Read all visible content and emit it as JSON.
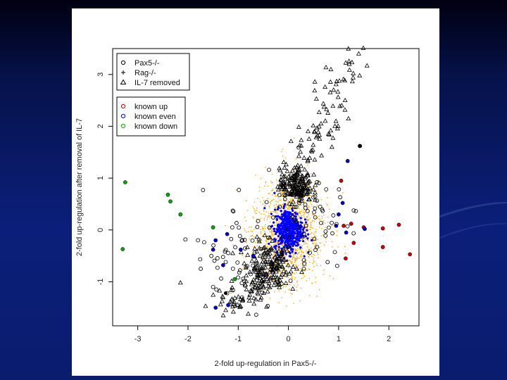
{
  "chart_data": {
    "type": "scatter",
    "title": "",
    "xlabel": "2-fold up-regulation in Pax5-/-",
    "ylabel": "2-fold up-regulation after removal of IL-7",
    "xlim": [
      -3.5,
      2.6
    ],
    "ylim": [
      -1.85,
      3.5
    ],
    "x_ticks": [
      "-3",
      "-2",
      "-1",
      "0",
      "1",
      "2"
    ],
    "y_ticks": [
      "-1",
      "0",
      "1",
      "2",
      "3"
    ],
    "legend_shapes": [
      {
        "symbol": "o",
        "label": "Pax5-/-"
      },
      {
        "symbol": "+",
        "label": "Rag-/-"
      },
      {
        "symbol": "triangle",
        "label": "IL-7 removed"
      }
    ],
    "legend_colors": [
      {
        "label": "known up",
        "color": "#d00000"
      },
      {
        "label": "known even",
        "color": "#0000d0"
      },
      {
        "label": "known down",
        "color": "#00b000"
      }
    ],
    "series": [
      {
        "name": "known up",
        "color": "#cc0000",
        "points": [
          [
            1.05,
            0.95
          ],
          [
            1.25,
            0.12
          ],
          [
            1.5,
            0.05
          ],
          [
            1.88,
            0.03
          ],
          [
            2.2,
            0.1
          ],
          [
            2.42,
            -0.47
          ],
          [
            1.88,
            -0.33
          ],
          [
            1.3,
            -0.25
          ],
          [
            1.14,
            -0.55
          ],
          [
            1.1,
            0.08
          ]
        ]
      },
      {
        "name": "known even",
        "color": "#0000cc",
        "points": [
          [
            1.15,
            -0.05
          ],
          [
            1.08,
            0.52
          ],
          [
            1.52,
            0.02
          ],
          [
            1.0,
            0.3
          ],
          [
            0.95,
            0.08
          ],
          [
            -1.22,
            -0.08
          ],
          [
            -1.5,
            -0.38
          ],
          [
            -1.3,
            -0.68
          ],
          [
            -1.45,
            -0.2
          ],
          [
            -0.7,
            -0.5
          ],
          [
            -1.2,
            -1.45
          ],
          [
            -1.45,
            -1.5
          ],
          [
            -0.95,
            -0.38
          ],
          [
            1.18,
            1.33
          ]
        ]
      },
      {
        "name": "known down",
        "color": "#00aa00",
        "points": [
          [
            -3.25,
            0.92
          ],
          [
            -2.4,
            0.68
          ],
          [
            -2.35,
            0.55
          ],
          [
            -2.15,
            0.3
          ],
          [
            -3.3,
            -0.37
          ],
          [
            -1.5,
            0.05
          ],
          [
            -1.07,
            -0.95
          ]
        ]
      }
    ],
    "clusters": {
      "orange_cloud": {
        "color": "#ffa500",
        "center": [
          0.0,
          -0.05
        ],
        "spread": [
          0.33,
          0.48
        ]
      },
      "blue_core": {
        "color": "#0000ff",
        "center": [
          0.0,
          0.0
        ],
        "spread": [
          0.14,
          0.2
        ]
      },
      "triangles_upper": {
        "marker": "triangle",
        "from": [
          0.0,
          0.6
        ],
        "to": [
          1.45,
          3.4
        ]
      },
      "triangles_lower": {
        "marker": "triangle",
        "from": [
          -1.3,
          -1.55
        ],
        "to": [
          0.1,
          -0.55
        ]
      },
      "open_circles": {
        "marker": "circle",
        "region_x": [
          -2.2,
          1.5
        ],
        "region_y": [
          -1.5,
          1.6
        ]
      }
    }
  }
}
